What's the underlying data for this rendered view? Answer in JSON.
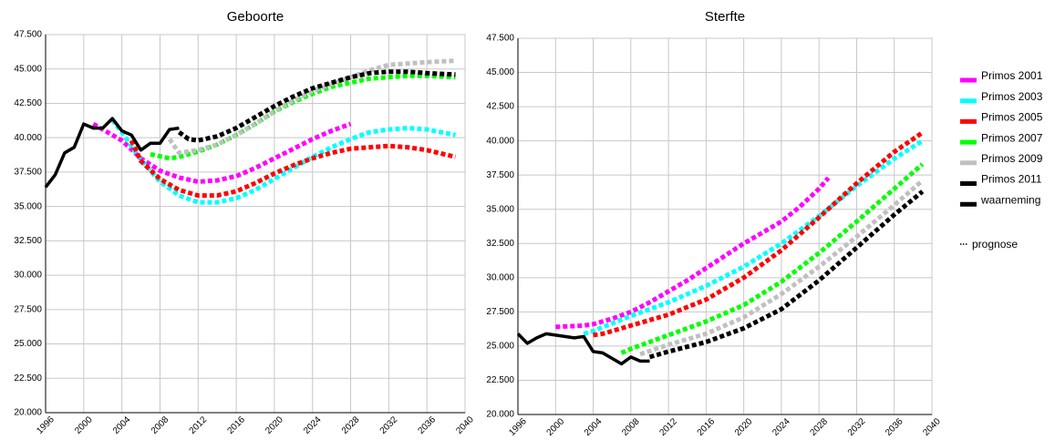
{
  "chart_data": [
    {
      "type": "line",
      "title": "Geboorte",
      "xlim": [
        1996,
        2040
      ],
      "xticks": [
        1996,
        2000,
        2004,
        2008,
        2012,
        2016,
        2020,
        2024,
        2028,
        2032,
        2036,
        2040
      ],
      "ylim": [
        20000,
        47500
      ],
      "yticks": [
        {
          "value": 20000,
          "label": "20.000"
        },
        {
          "value": 22500,
          "label": "22.500"
        },
        {
          "value": 25000,
          "label": "25.000"
        },
        {
          "value": 27500,
          "label": "27.500"
        },
        {
          "value": 30000,
          "label": "30.000"
        },
        {
          "value": 32500,
          "label": "32.500"
        },
        {
          "value": 35000,
          "label": "35.000"
        },
        {
          "value": 37500,
          "label": "37.500"
        },
        {
          "value": 40000,
          "label": "40.000"
        },
        {
          "value": 42500,
          "label": "42.500"
        },
        {
          "value": 45000,
          "label": "45.000"
        },
        {
          "value": 47500,
          "label": "47.500"
        }
      ],
      "grid": true,
      "series": [
        {
          "color": "#ff00ff",
          "style": "dotted",
          "x": [
            2001,
            2004,
            2006,
            2008,
            2010,
            2012,
            2014,
            2016,
            2018,
            2020,
            2022,
            2024,
            2026,
            2028
          ],
          "values": [
            41000,
            39800,
            38500,
            37600,
            37100,
            36800,
            36900,
            37200,
            37800,
            38500,
            39200,
            39900,
            40500,
            41000
          ]
        },
        {
          "color": "#00ffff",
          "style": "dotted",
          "x": [
            2003,
            2004,
            2006,
            2008,
            2010,
            2012,
            2014,
            2016,
            2018,
            2020,
            2022,
            2024,
            2026,
            2028,
            2030,
            2032,
            2034,
            2036,
            2039
          ],
          "values": [
            41300,
            40400,
            38400,
            36800,
            35800,
            35300,
            35300,
            35600,
            36200,
            37000,
            37800,
            38600,
            39300,
            39900,
            40400,
            40600,
            40700,
            40600,
            40200
          ]
        },
        {
          "color": "#ff0000",
          "style": "dotted",
          "x": [
            2005,
            2006,
            2008,
            2010,
            2012,
            2014,
            2016,
            2018,
            2020,
            2022,
            2024,
            2026,
            2028,
            2030,
            2032,
            2034,
            2036,
            2039
          ],
          "values": [
            39800,
            38300,
            37000,
            36200,
            35800,
            35800,
            36100,
            36700,
            37400,
            38000,
            38500,
            38900,
            39200,
            39300,
            39400,
            39300,
            39100,
            38600
          ]
        },
        {
          "color": "#00ff00",
          "style": "dotted",
          "x": [
            2007,
            2009,
            2010,
            2012,
            2014,
            2016,
            2018,
            2020,
            2022,
            2024,
            2026,
            2028,
            2030,
            2032,
            2034,
            2036,
            2039
          ],
          "values": [
            38800,
            38500,
            38600,
            39000,
            39500,
            40200,
            41000,
            41900,
            42600,
            43200,
            43700,
            44000,
            44300,
            44400,
            44500,
            44500,
            44400
          ]
        },
        {
          "color": "#c0c0c0",
          "style": "dotted",
          "x": [
            2009,
            2010,
            2012,
            2014,
            2016,
            2018,
            2020,
            2022,
            2024,
            2026,
            2028,
            2030,
            2032,
            2034,
            2036,
            2039
          ],
          "values": [
            39900,
            38900,
            39100,
            39500,
            40200,
            41000,
            41900,
            42700,
            43400,
            43900,
            44400,
            44900,
            45300,
            45400,
            45500,
            45600
          ]
        },
        {
          "color": "#000000",
          "style": "dotted",
          "x": [
            2010,
            2011,
            2012,
            2014,
            2016,
            2018,
            2020,
            2022,
            2024,
            2026,
            2028,
            2030,
            2032,
            2034,
            2036,
            2039
          ],
          "values": [
            40400,
            39900,
            39800,
            40100,
            40700,
            41500,
            42300,
            43000,
            43600,
            44000,
            44400,
            44700,
            44800,
            44800,
            44700,
            44600
          ]
        },
        {
          "color": "#000000",
          "style": "solid",
          "x": [
            1996,
            1997,
            1998,
            1999,
            2000,
            2001,
            2002,
            2003,
            2004,
            2005,
            2006,
            2007,
            2008,
            2009,
            2010
          ],
          "values": [
            36400,
            37300,
            38900,
            39300,
            41000,
            40700,
            40700,
            41400,
            40500,
            40200,
            39100,
            39600,
            39600,
            40600,
            40700
          ]
        }
      ]
    },
    {
      "type": "line",
      "title": "Sterfte",
      "xlim": [
        1996,
        2040
      ],
      "xticks": [
        1996,
        2000,
        2004,
        2008,
        2012,
        2016,
        2020,
        2024,
        2028,
        2032,
        2036,
        2040
      ],
      "ylim": [
        20000,
        47500
      ],
      "yticks": [
        {
          "value": 20000,
          "label": "20.000"
        },
        {
          "value": 22500,
          "label": "22.500"
        },
        {
          "value": 25000,
          "label": "25.000"
        },
        {
          "value": 27500,
          "label": "27.500"
        },
        {
          "value": 30000,
          "label": "30.000"
        },
        {
          "value": 32500,
          "label": "32.500"
        },
        {
          "value": 35000,
          "label": "35.000"
        },
        {
          "value": 37500,
          "label": "37.500"
        },
        {
          "value": 40000,
          "label": "40.000"
        },
        {
          "value": 42500,
          "label": "42.500"
        },
        {
          "value": 45000,
          "label": "45.000"
        },
        {
          "value": 47500,
          "label": "47.500"
        }
      ],
      "grid": true,
      "legend_note": "prognose",
      "series": [
        {
          "name": "Primos 2001",
          "color": "#ff00ff",
          "style": "dotted",
          "x": [
            2000,
            2003,
            2004,
            2006,
            2008,
            2010,
            2012,
            2014,
            2016,
            2018,
            2020,
            2022,
            2024,
            2026,
            2028,
            2029
          ],
          "values": [
            26400,
            26500,
            26600,
            27000,
            27500,
            28200,
            29000,
            29800,
            30700,
            31600,
            32500,
            33300,
            34100,
            35200,
            36500,
            37300
          ]
        },
        {
          "name": "Primos 2003",
          "color": "#00ffff",
          "style": "dotted",
          "x": [
            2003,
            2004,
            2008,
            2012,
            2016,
            2020,
            2024,
            2028,
            2032,
            2036,
            2039
          ],
          "values": [
            25900,
            26100,
            27200,
            28200,
            29400,
            30800,
            32500,
            34500,
            36700,
            38700,
            40000
          ]
        },
        {
          "name": "Primos 2005",
          "color": "#ff0000",
          "style": "dotted",
          "x": [
            2004,
            2005,
            2008,
            2012,
            2016,
            2020,
            2024,
            2028,
            2032,
            2036,
            2039
          ],
          "values": [
            25800,
            25900,
            26500,
            27300,
            28400,
            30000,
            32000,
            34400,
            36900,
            39200,
            40600
          ]
        },
        {
          "name": "Primos 2007",
          "color": "#00ff00",
          "style": "dotted",
          "x": [
            2007,
            2008,
            2012,
            2016,
            2020,
            2024,
            2028,
            2032,
            2036,
            2039
          ],
          "values": [
            24500,
            24800,
            25800,
            26800,
            28000,
            29700,
            31800,
            34100,
            36500,
            38300
          ]
        },
        {
          "name": "Primos 2009",
          "color": "#c0c0c0",
          "style": "dotted",
          "x": [
            2009,
            2012,
            2016,
            2020,
            2024,
            2028,
            2032,
            2036,
            2039
          ],
          "values": [
            24400,
            25100,
            25900,
            27100,
            28800,
            30800,
            33000,
            35300,
            37100
          ]
        },
        {
          "name": "Primos 2011",
          "color": "#000000",
          "style": "dotted",
          "x": [
            2010,
            2012,
            2016,
            2020,
            2024,
            2028,
            2032,
            2036,
            2039
          ],
          "values": [
            24200,
            24600,
            25300,
            26300,
            27700,
            29800,
            32200,
            34600,
            36300
          ]
        },
        {
          "name": "waarneming",
          "color": "#000000",
          "style": "solid",
          "x": [
            1996,
            1997,
            1998,
            1999,
            2000,
            2001,
            2002,
            2003,
            2004,
            2005,
            2006,
            2007,
            2008,
            2009,
            2010
          ],
          "values": [
            25900,
            25200,
            25600,
            25900,
            25800,
            25700,
            25600,
            25700,
            24600,
            24500,
            24100,
            23700,
            24200,
            23900,
            23900
          ]
        }
      ]
    }
  ]
}
